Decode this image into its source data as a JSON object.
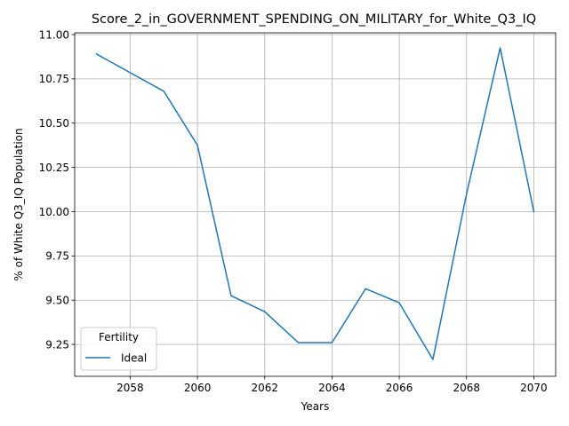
{
  "chart_data": {
    "type": "line",
    "title": "Score_2_in_GOVERNMENT_SPENDING_ON_MILITARY_for_White_Q3_IQ",
    "xlabel": "Years",
    "ylabel": "% of White Q3_IQ Population",
    "x": [
      2057,
      2058,
      2059,
      2060,
      2061,
      2062,
      2063,
      2064,
      2065,
      2066,
      2067,
      2068,
      2069,
      2070
    ],
    "xlim": [
      2056.35,
      2070.65
    ],
    "ylim": [
      9.07,
      11.01
    ],
    "xticks": [
      2058,
      2060,
      2062,
      2064,
      2066,
      2068,
      2070
    ],
    "yticks": [
      9.25,
      9.5,
      9.75,
      10.0,
      10.25,
      10.5,
      10.75,
      11.0
    ],
    "ytick_labels": [
      "9.25",
      "9.50",
      "9.75",
      "10.00",
      "10.25",
      "10.50",
      "10.75",
      "11.00"
    ],
    "grid": true,
    "legend": {
      "title": "Fertility",
      "placement": "lower-left"
    },
    "series": [
      {
        "name": "Ideal",
        "color": "#1f77b4",
        "values": [
          10.89,
          10.785,
          10.68,
          10.375,
          9.525,
          9.435,
          9.26,
          9.26,
          9.565,
          9.485,
          9.165,
          10.1,
          10.925,
          10.0
        ]
      }
    ]
  }
}
